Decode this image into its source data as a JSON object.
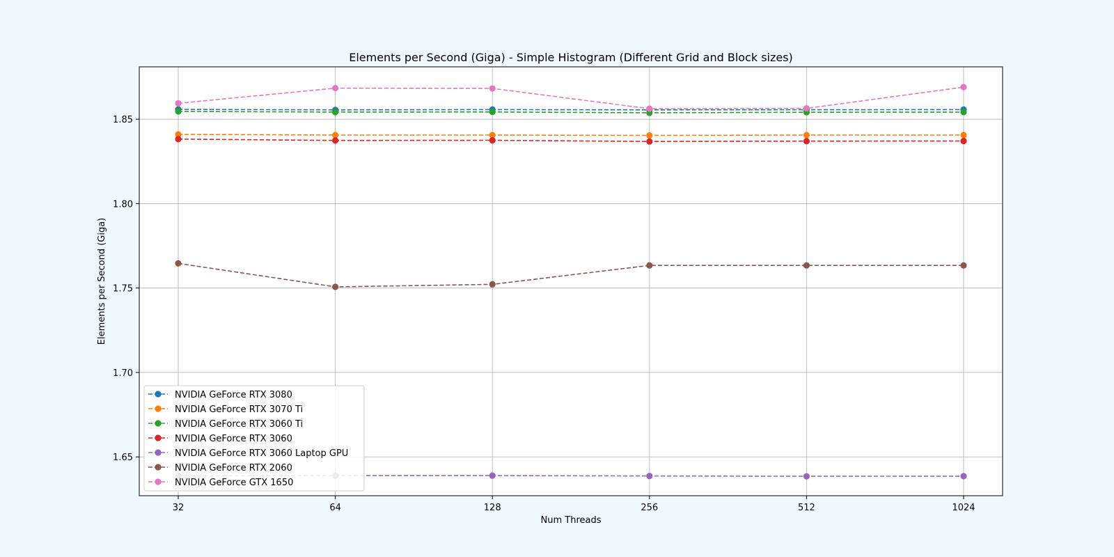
{
  "chart_data": {
    "type": "line",
    "title": "Elements per Second (Giga) - Simple Histogram (Different Grid and Block sizes)",
    "xlabel": "Num Threads",
    "ylabel": "Elements per Second (Giga)",
    "x": [
      "32",
      "64",
      "128",
      "256",
      "512",
      "1024"
    ],
    "ylim": [
      1.627,
      1.881
    ],
    "yticks": [
      "1.65",
      "1.70",
      "1.75",
      "1.80",
      "1.85"
    ],
    "grid": true,
    "legend_position": "lower-left",
    "line_style": "dashed",
    "marker": "circle",
    "series": [
      {
        "name": "NVIDIA GeForce RTX 3080",
        "color": "#1f77b4",
        "values": [
          1.8558,
          1.8555,
          1.8557,
          1.8555,
          1.8556,
          1.8557
        ]
      },
      {
        "name": "NVIDIA GeForce RTX 3070 Ti",
        "color": "#ff7f0e",
        "values": [
          1.841,
          1.8406,
          1.8406,
          1.8404,
          1.8406,
          1.8406
        ]
      },
      {
        "name": "NVIDIA GeForce RTX 3060 Ti",
        "color": "#2ca02c",
        "values": [
          1.8546,
          1.8542,
          1.8543,
          1.8538,
          1.8541,
          1.8542
        ]
      },
      {
        "name": "NVIDIA GeForce RTX 3060",
        "color": "#d62728",
        "values": [
          1.8382,
          1.8374,
          1.8375,
          1.8368,
          1.837,
          1.8371
        ]
      },
      {
        "name": "NVIDIA GeForce RTX 3060 Laptop GPU",
        "color": "#9467bd",
        "values": [
          1.6388,
          1.6389,
          1.6389,
          1.6387,
          1.6385,
          1.6386
        ]
      },
      {
        "name": "NVIDIA GeForce RTX 2060",
        "color": "#8c564b",
        "values": [
          1.7646,
          1.7507,
          1.7522,
          1.7634,
          1.7634,
          1.7634
        ]
      },
      {
        "name": "NVIDIA GeForce GTX 1650",
        "color": "#e377c2",
        "values": [
          1.8594,
          1.8684,
          1.8682,
          1.8562,
          1.8564,
          1.869
        ]
      }
    ]
  }
}
